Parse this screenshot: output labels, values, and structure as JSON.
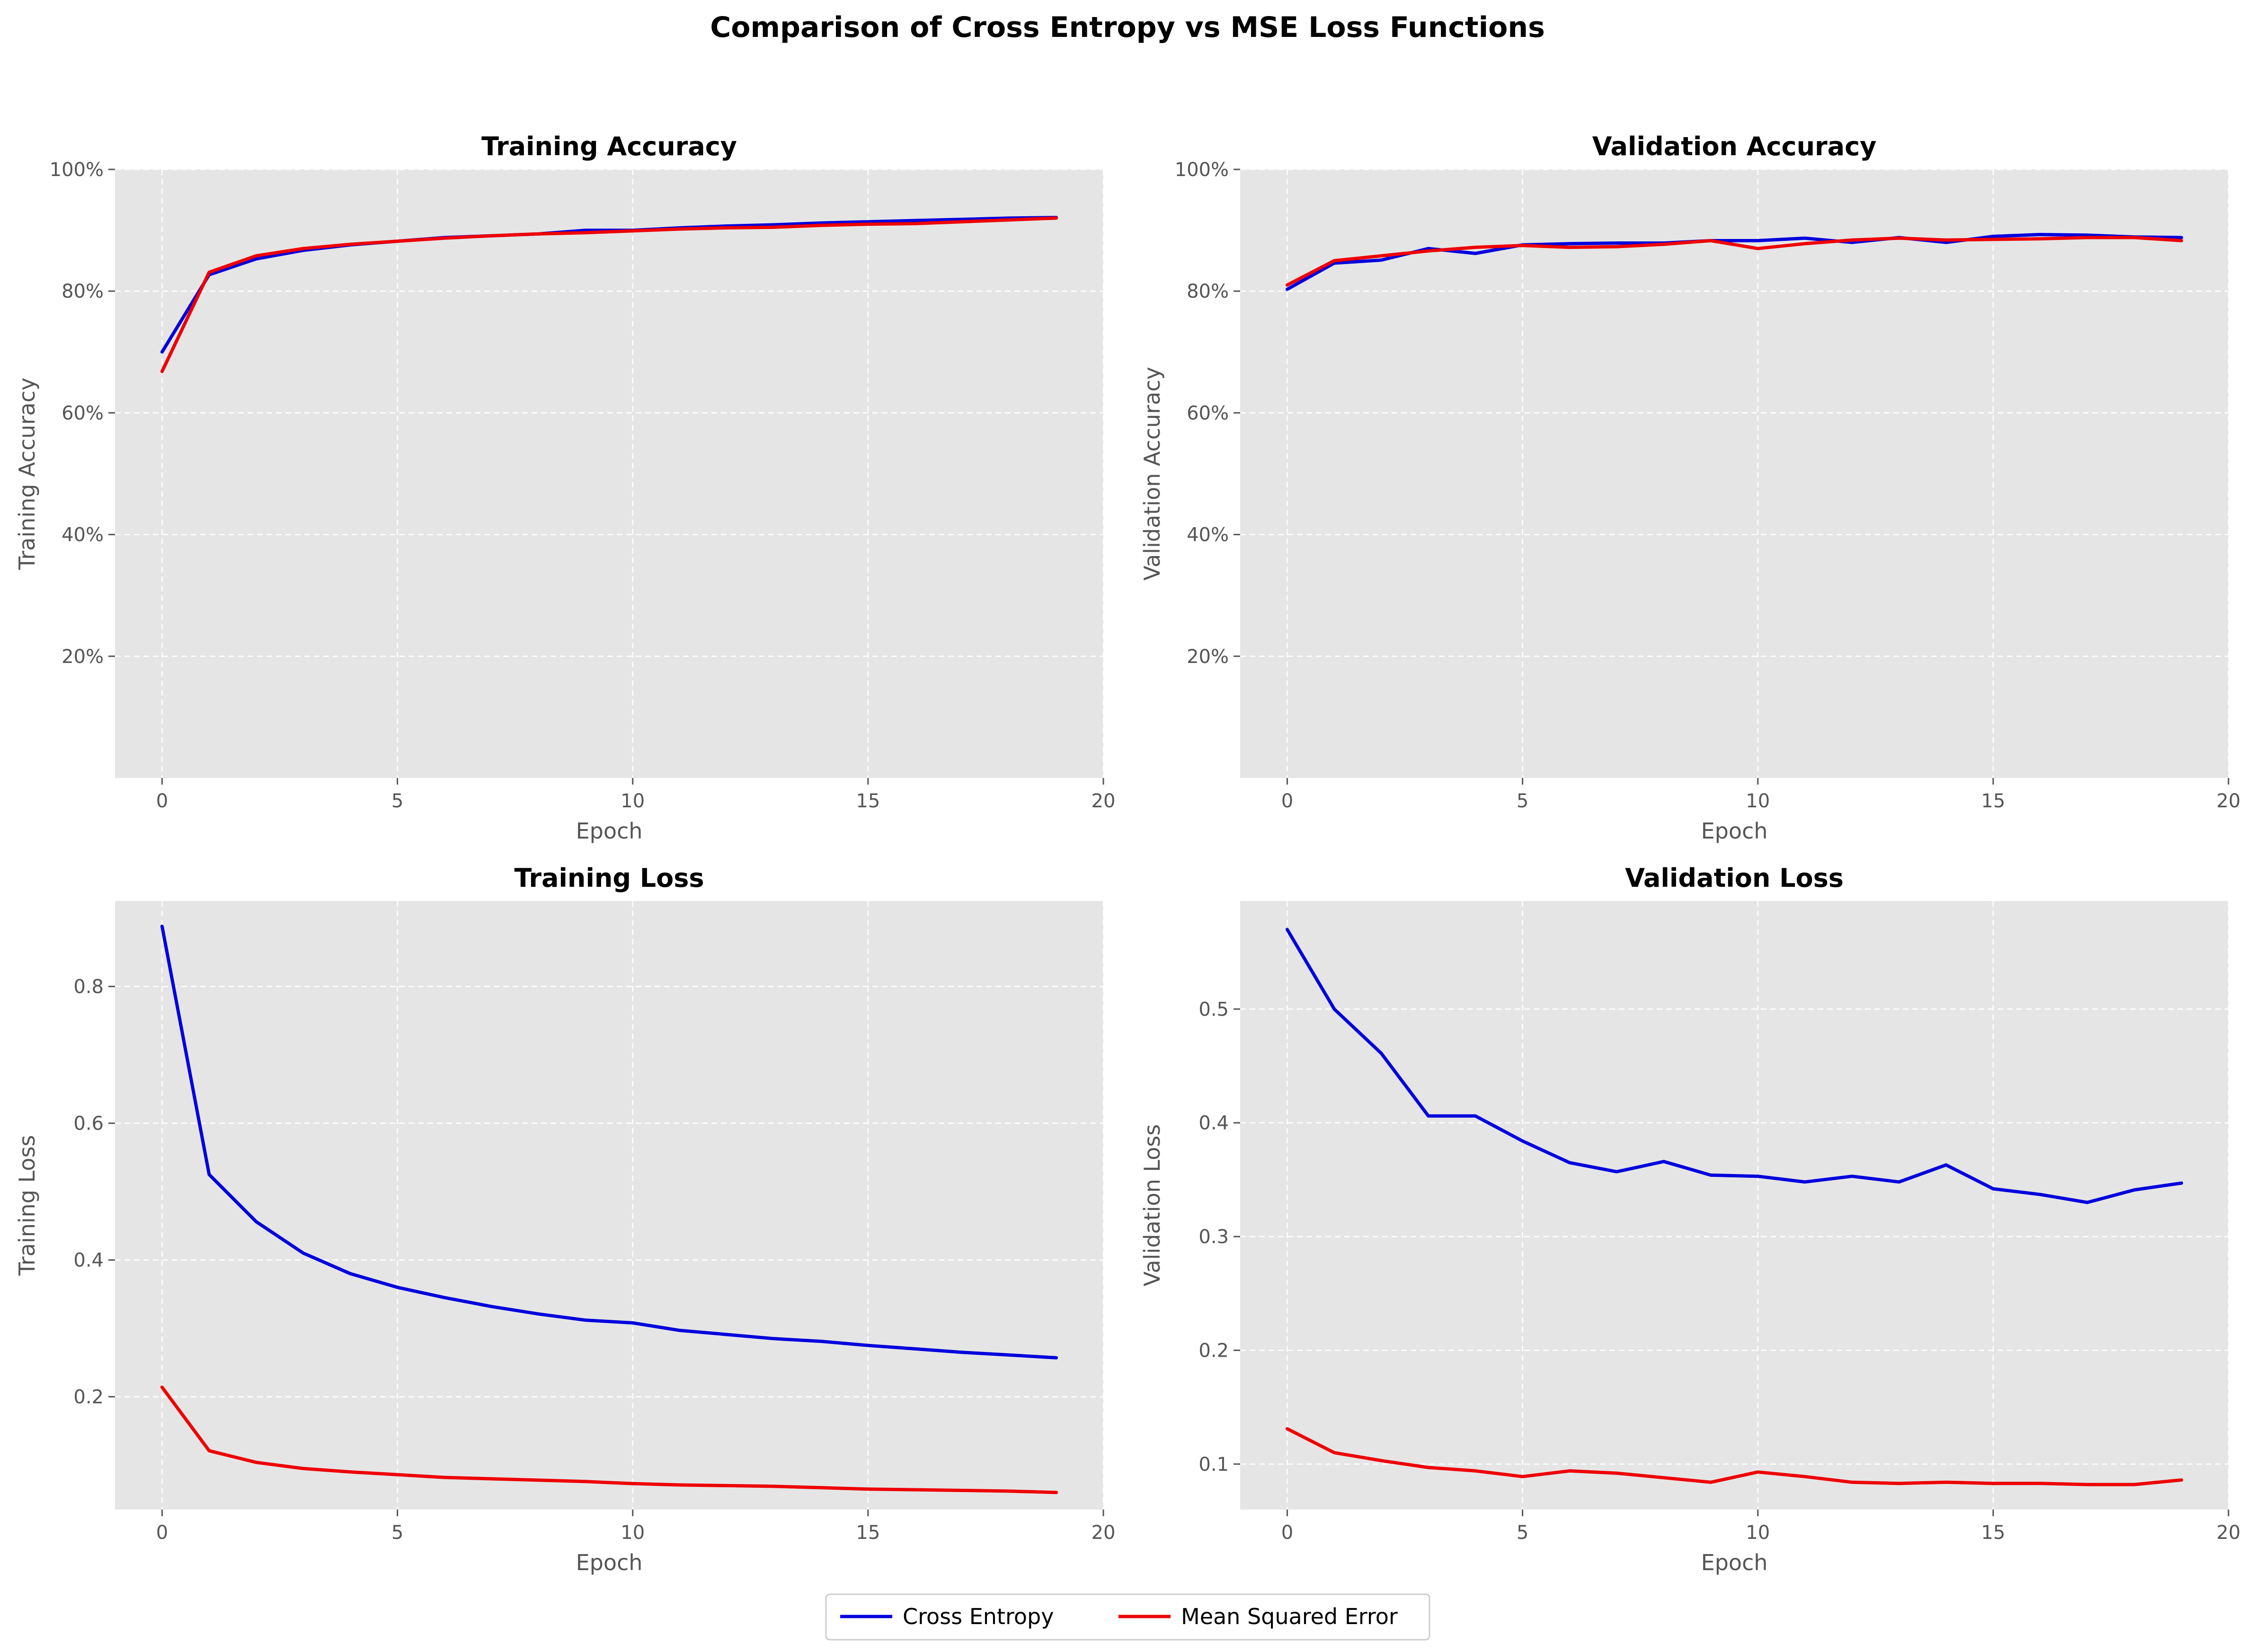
{
  "title": "Comparison of Cross Entropy vs MSE Loss Functions",
  "colors": {
    "cross_entropy": "#0000dd",
    "mse": "#ee0000",
    "panel_bg": "#e5e5e5",
    "grid": "#ffffff"
  },
  "legend": {
    "placement": "bottom-center",
    "entries": [
      {
        "label": "Cross Entropy",
        "color": "#0000dd"
      },
      {
        "label": "Mean Squared Error",
        "color": "#ee0000"
      }
    ]
  },
  "chart_data": [
    {
      "type": "line",
      "title": "Training Accuracy",
      "xlabel": "Epoch",
      "ylabel": "Training Accuracy",
      "xlim": [
        -1,
        20
      ],
      "ylim": [
        0,
        1.0
      ],
      "xticks": [
        0,
        5,
        10,
        15,
        20
      ],
      "yticks": [
        0.2,
        0.4,
        0.6,
        0.8,
        1.0
      ],
      "ytick_labels": [
        "20%",
        "40%",
        "60%",
        "80%",
        "100%"
      ],
      "grid": true,
      "x": [
        0,
        1,
        2,
        3,
        4,
        5,
        6,
        7,
        8,
        9,
        10,
        11,
        12,
        13,
        14,
        15,
        16,
        17,
        18,
        19
      ],
      "series": [
        {
          "name": "Cross Entropy",
          "color": "#0000dd",
          "values": [
            0.7,
            0.827,
            0.853,
            0.867,
            0.876,
            0.882,
            0.888,
            0.891,
            0.894,
            0.9,
            0.9,
            0.904,
            0.907,
            0.909,
            0.912,
            0.914,
            0.916,
            0.918,
            0.92,
            0.921
          ]
        },
        {
          "name": "Mean Squared Error",
          "color": "#ee0000",
          "values": [
            0.668,
            0.831,
            0.858,
            0.87,
            0.877,
            0.882,
            0.887,
            0.891,
            0.894,
            0.896,
            0.899,
            0.902,
            0.904,
            0.905,
            0.908,
            0.91,
            0.911,
            0.914,
            0.917,
            0.92
          ]
        }
      ]
    },
    {
      "type": "line",
      "title": "Validation Accuracy",
      "xlabel": "Epoch",
      "ylabel": "Validation Accuracy",
      "xlim": [
        -1,
        20
      ],
      "ylim": [
        0,
        1.0
      ],
      "xticks": [
        0,
        5,
        10,
        15,
        20
      ],
      "yticks": [
        0.2,
        0.4,
        0.6,
        0.8,
        1.0
      ],
      "ytick_labels": [
        "20%",
        "40%",
        "60%",
        "80%",
        "100%"
      ],
      "grid": true,
      "x": [
        0,
        1,
        2,
        3,
        4,
        5,
        6,
        7,
        8,
        9,
        10,
        11,
        12,
        13,
        14,
        15,
        16,
        17,
        18,
        19
      ],
      "series": [
        {
          "name": "Cross Entropy",
          "color": "#0000dd",
          "values": [
            0.803,
            0.846,
            0.851,
            0.87,
            0.862,
            0.876,
            0.878,
            0.879,
            0.879,
            0.883,
            0.883,
            0.887,
            0.88,
            0.888,
            0.88,
            0.89,
            0.893,
            0.892,
            0.889,
            0.888
          ]
        },
        {
          "name": "Mean Squared Error",
          "color": "#ee0000",
          "values": [
            0.81,
            0.85,
            0.858,
            0.866,
            0.872,
            0.875,
            0.872,
            0.873,
            0.877,
            0.883,
            0.87,
            0.878,
            0.884,
            0.887,
            0.884,
            0.885,
            0.886,
            0.888,
            0.888,
            0.883
          ]
        }
      ]
    },
    {
      "type": "line",
      "title": "Training Loss",
      "xlabel": "Epoch",
      "ylabel": "Training Loss",
      "xlim": [
        -1,
        20
      ],
      "ylim": [
        0.035,
        0.925
      ],
      "xticks": [
        0,
        5,
        10,
        15,
        20
      ],
      "yticks": [
        0.2,
        0.4,
        0.6,
        0.8
      ],
      "ytick_labels": [
        "0.2",
        "0.4",
        "0.6",
        "0.8"
      ],
      "grid": true,
      "x": [
        0,
        1,
        2,
        3,
        4,
        5,
        6,
        7,
        8,
        9,
        10,
        11,
        12,
        13,
        14,
        15,
        16,
        17,
        18,
        19
      ],
      "series": [
        {
          "name": "Cross Entropy",
          "color": "#0000dd",
          "values": [
            0.888,
            0.525,
            0.456,
            0.41,
            0.38,
            0.36,
            0.345,
            0.332,
            0.321,
            0.312,
            0.308,
            0.297,
            0.291,
            0.285,
            0.281,
            0.275,
            0.27,
            0.265,
            0.261,
            0.257
          ]
        },
        {
          "name": "Mean Squared Error",
          "color": "#ee0000",
          "values": [
            0.214,
            0.121,
            0.104,
            0.095,
            0.09,
            0.086,
            0.082,
            0.08,
            0.078,
            0.076,
            0.073,
            0.071,
            0.07,
            0.069,
            0.067,
            0.065,
            0.064,
            0.063,
            0.062,
            0.06
          ]
        }
      ]
    },
    {
      "type": "line",
      "title": "Validation Loss",
      "xlabel": "Epoch",
      "ylabel": "Validation Loss",
      "xlim": [
        -1,
        20
      ],
      "ylim": [
        0.06,
        0.595
      ],
      "xticks": [
        0,
        5,
        10,
        15,
        20
      ],
      "yticks": [
        0.1,
        0.2,
        0.3,
        0.4,
        0.5
      ],
      "ytick_labels": [
        "0.1",
        "0.2",
        "0.3",
        "0.4",
        "0.5"
      ],
      "grid": true,
      "x": [
        0,
        1,
        2,
        3,
        4,
        5,
        6,
        7,
        8,
        9,
        10,
        11,
        12,
        13,
        14,
        15,
        16,
        17,
        18,
        19
      ],
      "series": [
        {
          "name": "Cross Entropy",
          "color": "#0000dd",
          "values": [
            0.57,
            0.5,
            0.461,
            0.406,
            0.406,
            0.384,
            0.365,
            0.357,
            0.366,
            0.354,
            0.353,
            0.348,
            0.353,
            0.348,
            0.363,
            0.342,
            0.337,
            0.33,
            0.341,
            0.347
          ]
        },
        {
          "name": "Mean Squared Error",
          "color": "#ee0000",
          "values": [
            0.131,
            0.11,
            0.103,
            0.097,
            0.094,
            0.089,
            0.094,
            0.092,
            0.088,
            0.084,
            0.093,
            0.089,
            0.084,
            0.083,
            0.084,
            0.083,
            0.083,
            0.082,
            0.082,
            0.086
          ]
        }
      ]
    }
  ]
}
